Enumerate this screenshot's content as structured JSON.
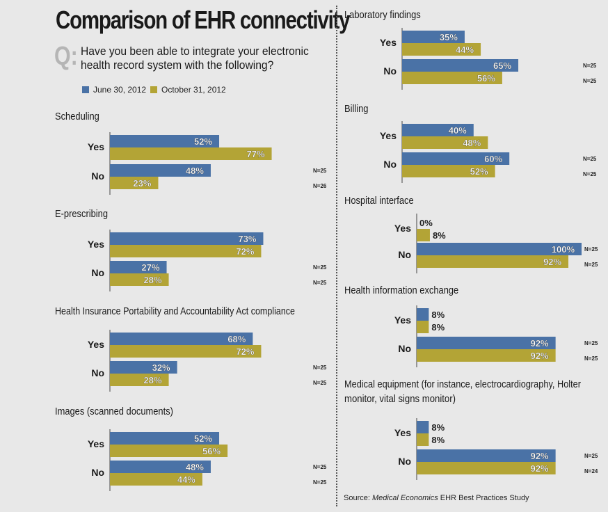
{
  "title": "Comparison of EHR connectivity",
  "question": {
    "marker": "Q:",
    "text": "Have you been able to integrate your electronic health record system with the following?"
  },
  "legend": [
    {
      "name": "June 30, 2012",
      "color": "#4a72a6"
    },
    {
      "name": "October 31, 2012",
      "color": "#b3a436"
    }
  ],
  "source": {
    "prefix": "Source: ",
    "publication": "Medical Economics",
    "suffix": " EHR Best Practices Study"
  },
  "chart_data": [
    {
      "type": "bar",
      "title": "Scheduling",
      "categories": [
        "Yes",
        "No"
      ],
      "series": [
        {
          "name": "June 30, 2012",
          "values": [
            52,
            48
          ]
        },
        {
          "name": "October 31, 2012",
          "values": [
            77,
            23
          ]
        }
      ],
      "n_labels": [
        "N=25",
        "N=26"
      ],
      "unit": "%",
      "xlim": [
        0,
        100
      ]
    },
    {
      "type": "bar",
      "title": "E-prescribing",
      "categories": [
        "Yes",
        "No"
      ],
      "series": [
        {
          "name": "June 30, 2012",
          "values": [
            73,
            27
          ]
        },
        {
          "name": "October 31, 2012",
          "values": [
            72,
            28
          ]
        }
      ],
      "n_labels": [
        "N=25",
        "N=25"
      ],
      "unit": "%",
      "xlim": [
        0,
        100
      ]
    },
    {
      "type": "bar",
      "title": "Health Insurance Portability and Accountability Act compliance",
      "categories": [
        "Yes",
        "No"
      ],
      "series": [
        {
          "name": "June 30, 2012",
          "values": [
            68,
            32
          ]
        },
        {
          "name": "October 31, 2012",
          "values": [
            72,
            28
          ]
        }
      ],
      "n_labels": [
        "N=25",
        "N=25"
      ],
      "unit": "%",
      "xlim": [
        0,
        100
      ]
    },
    {
      "type": "bar",
      "title": "Images (scanned documents)",
      "categories": [
        "Yes",
        "No"
      ],
      "series": [
        {
          "name": "June 30, 2012",
          "values": [
            52,
            48
          ]
        },
        {
          "name": "October 31, 2012",
          "values": [
            56,
            44
          ]
        }
      ],
      "n_labels": [
        "N=25",
        "N=25"
      ],
      "unit": "%",
      "xlim": [
        0,
        100
      ]
    },
    {
      "type": "bar",
      "title": "Laboratory findings",
      "categories": [
        "Yes",
        "No"
      ],
      "series": [
        {
          "name": "June 30, 2012",
          "values": [
            35,
            65
          ]
        },
        {
          "name": "October 31, 2012",
          "values": [
            44,
            56
          ]
        }
      ],
      "n_labels": [
        "N=25",
        "N=25"
      ],
      "unit": "%",
      "xlim": [
        0,
        100
      ]
    },
    {
      "type": "bar",
      "title": "Billing",
      "categories": [
        "Yes",
        "No"
      ],
      "series": [
        {
          "name": "June 30, 2012",
          "values": [
            40,
            60
          ]
        },
        {
          "name": "October 31, 2012",
          "values": [
            48,
            52
          ]
        }
      ],
      "n_labels": [
        "N=25",
        "N=25"
      ],
      "unit": "%",
      "xlim": [
        0,
        100
      ]
    },
    {
      "type": "bar",
      "title": "Hospital interface",
      "categories": [
        "Yes",
        "No"
      ],
      "series": [
        {
          "name": "June 30, 2012",
          "values": [
            0,
            100
          ]
        },
        {
          "name": "October 31, 2012",
          "values": [
            8,
            92
          ]
        }
      ],
      "n_labels": [
        "N=25",
        "N=25"
      ],
      "unit": "%",
      "xlim": [
        0,
        100
      ]
    },
    {
      "type": "bar",
      "title": "Health information exchange",
      "categories": [
        "Yes",
        "No"
      ],
      "series": [
        {
          "name": "June 30, 2012",
          "values": [
            8,
            92
          ]
        },
        {
          "name": "October 31, 2012",
          "values": [
            8,
            92
          ]
        }
      ],
      "n_labels": [
        "N=25",
        "N=25"
      ],
      "unit": "%",
      "xlim": [
        0,
        100
      ]
    },
    {
      "type": "bar",
      "title": "Medical equipment (for instance, electrocardiography, Holter monitor, vital signs monitor)",
      "categories": [
        "Yes",
        "No"
      ],
      "series": [
        {
          "name": "June 30, 2012",
          "values": [
            8,
            92
          ]
        },
        {
          "name": "October 31, 2012",
          "values": [
            8,
            92
          ]
        }
      ],
      "n_labels": [
        "N=25",
        "N=24"
      ],
      "unit": "%",
      "xlim": [
        0,
        100
      ]
    }
  ]
}
